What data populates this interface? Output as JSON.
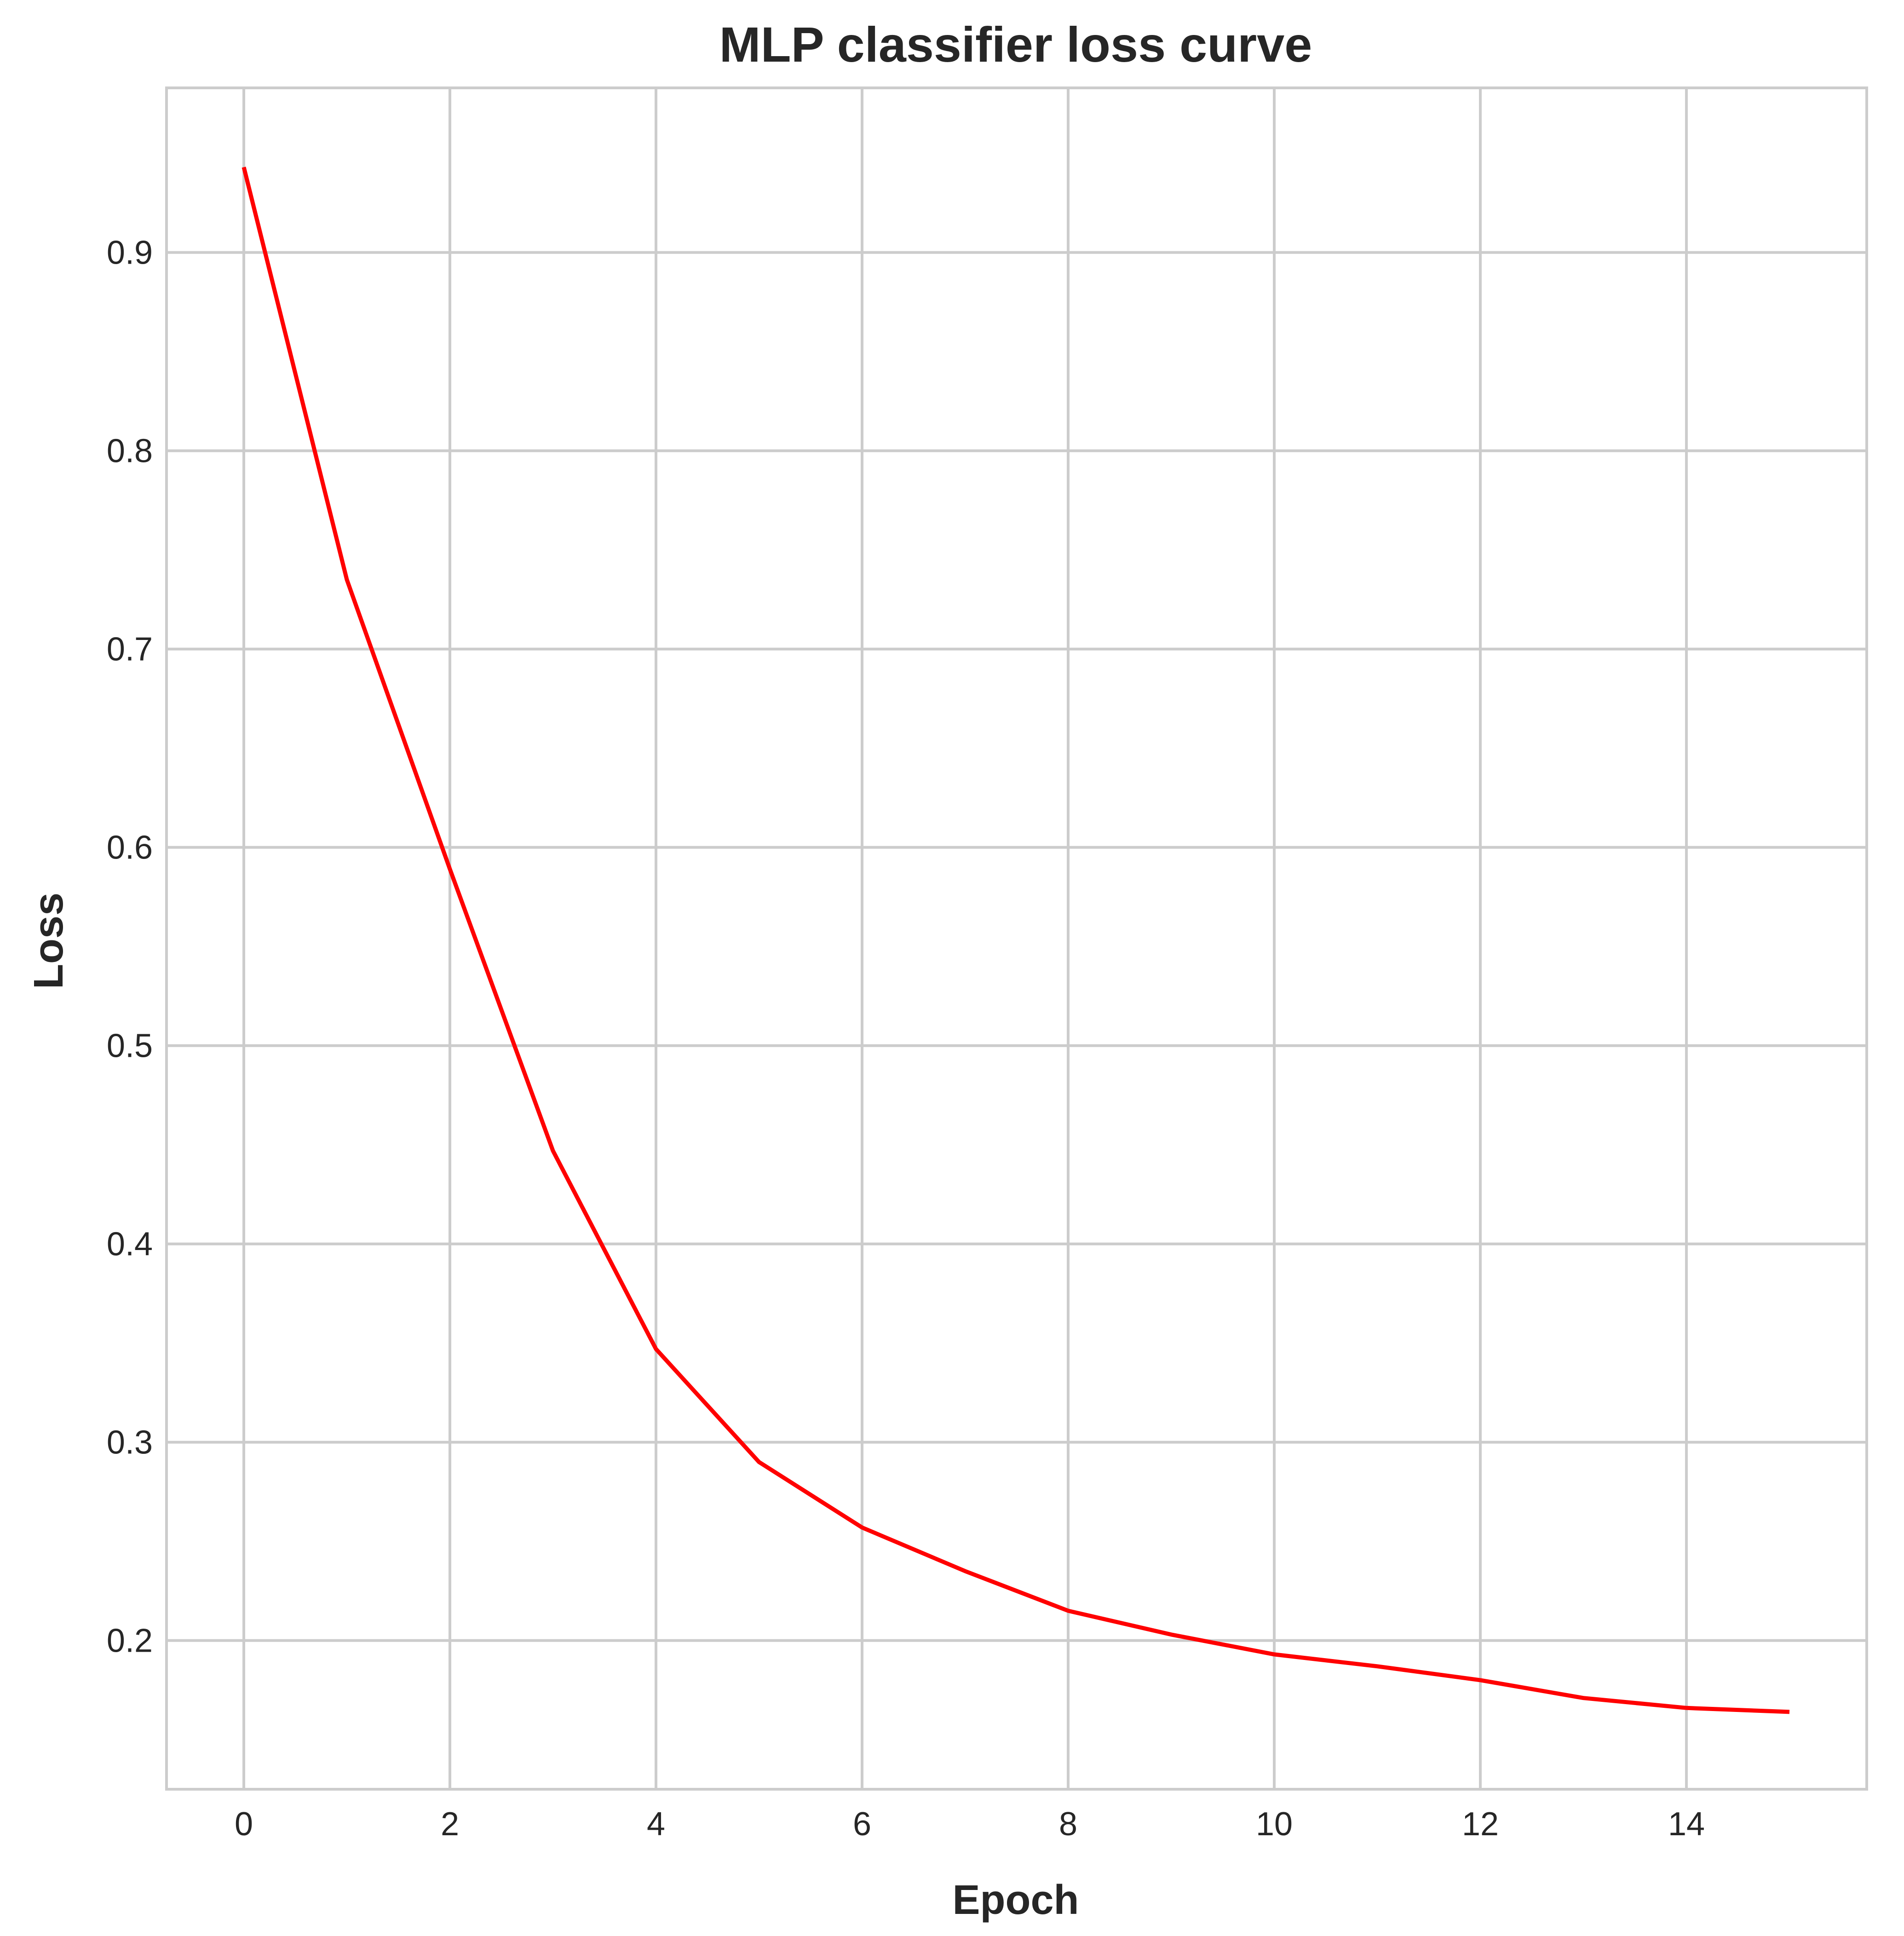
{
  "chart_data": {
    "type": "line",
    "title": "MLP classifier loss curve",
    "xlabel": "Epoch",
    "ylabel": "Loss",
    "xlim": [
      -0.75,
      15.75
    ],
    "ylim": [
      0.125,
      0.983
    ],
    "xticks": [
      0,
      2,
      4,
      6,
      8,
      10,
      12,
      14
    ],
    "xtick_labels": [
      "0",
      "2",
      "4",
      "6",
      "8",
      "10",
      "12",
      "14"
    ],
    "yticks": [
      0.2,
      0.3,
      0.4,
      0.5,
      0.6,
      0.7,
      0.8,
      0.9
    ],
    "ytick_labels": [
      "0.2",
      "0.3",
      "0.4",
      "0.5",
      "0.6",
      "0.7",
      "0.8",
      "0.9"
    ],
    "grid": true,
    "legend": "none",
    "colors": {
      "line": "#ff0000",
      "grid": "#cccccc",
      "frame": "#cccccc",
      "text": "#262626"
    },
    "series": [
      {
        "x": [
          0,
          1,
          2,
          3,
          4,
          5,
          6,
          7,
          8,
          9,
          10,
          11,
          12,
          13,
          14,
          15
        ],
        "values": [
          0.943,
          0.735,
          0.589,
          0.447,
          0.347,
          0.29,
          0.257,
          0.235,
          0.215,
          0.203,
          0.193,
          0.187,
          0.18,
          0.171,
          0.166,
          0.164
        ]
      }
    ]
  }
}
